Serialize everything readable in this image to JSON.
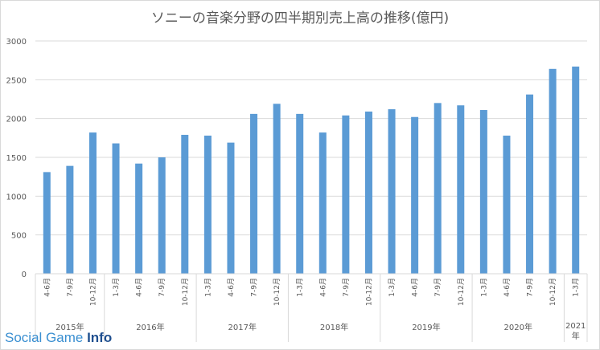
{
  "watermark": {
    "part1": "Social Game",
    "part2": "Info"
  },
  "colors": {
    "bar": "#5b9bd5",
    "grid": "#d9d9d9",
    "axis_text": "#595959"
  },
  "chart_data": {
    "type": "bar",
    "title": "ソニーの音楽分野の四半期別売上高の推移(億円)",
    "xlabel": "",
    "ylabel": "",
    "ylim": [
      0,
      3000
    ],
    "yticks": [
      0,
      500,
      1000,
      1500,
      2000,
      2500,
      3000
    ],
    "grid": true,
    "legend": "none",
    "categories": [
      "4-6月",
      "7-9月",
      "10-12月",
      "1-3月",
      "4-6月",
      "7-9月",
      "10-12月",
      "1-3月",
      "4-6月",
      "7-9月",
      "10-12月",
      "1-3月",
      "4-6月",
      "7-9月",
      "10-12月",
      "1-3月",
      "4-6月",
      "7-9月",
      "10-12月",
      "1-3月",
      "4-6月",
      "7-9月",
      "10-12月",
      "1-3月"
    ],
    "values": [
      1310,
      1390,
      1820,
      1680,
      1420,
      1500,
      1790,
      1780,
      1690,
      2060,
      2190,
      2060,
      1820,
      2040,
      2090,
      2120,
      2020,
      2200,
      2170,
      2110,
      1780,
      2310,
      2640,
      2670
    ],
    "year_groups": [
      {
        "label": "2015年",
        "count": 3
      },
      {
        "label": "2016年",
        "count": 4
      },
      {
        "label": "2017年",
        "count": 4
      },
      {
        "label": "2018年",
        "count": 4
      },
      {
        "label": "2019年",
        "count": 4
      },
      {
        "label": "2020年",
        "count": 4
      },
      {
        "label": "2021\n年",
        "count": 1
      }
    ]
  }
}
